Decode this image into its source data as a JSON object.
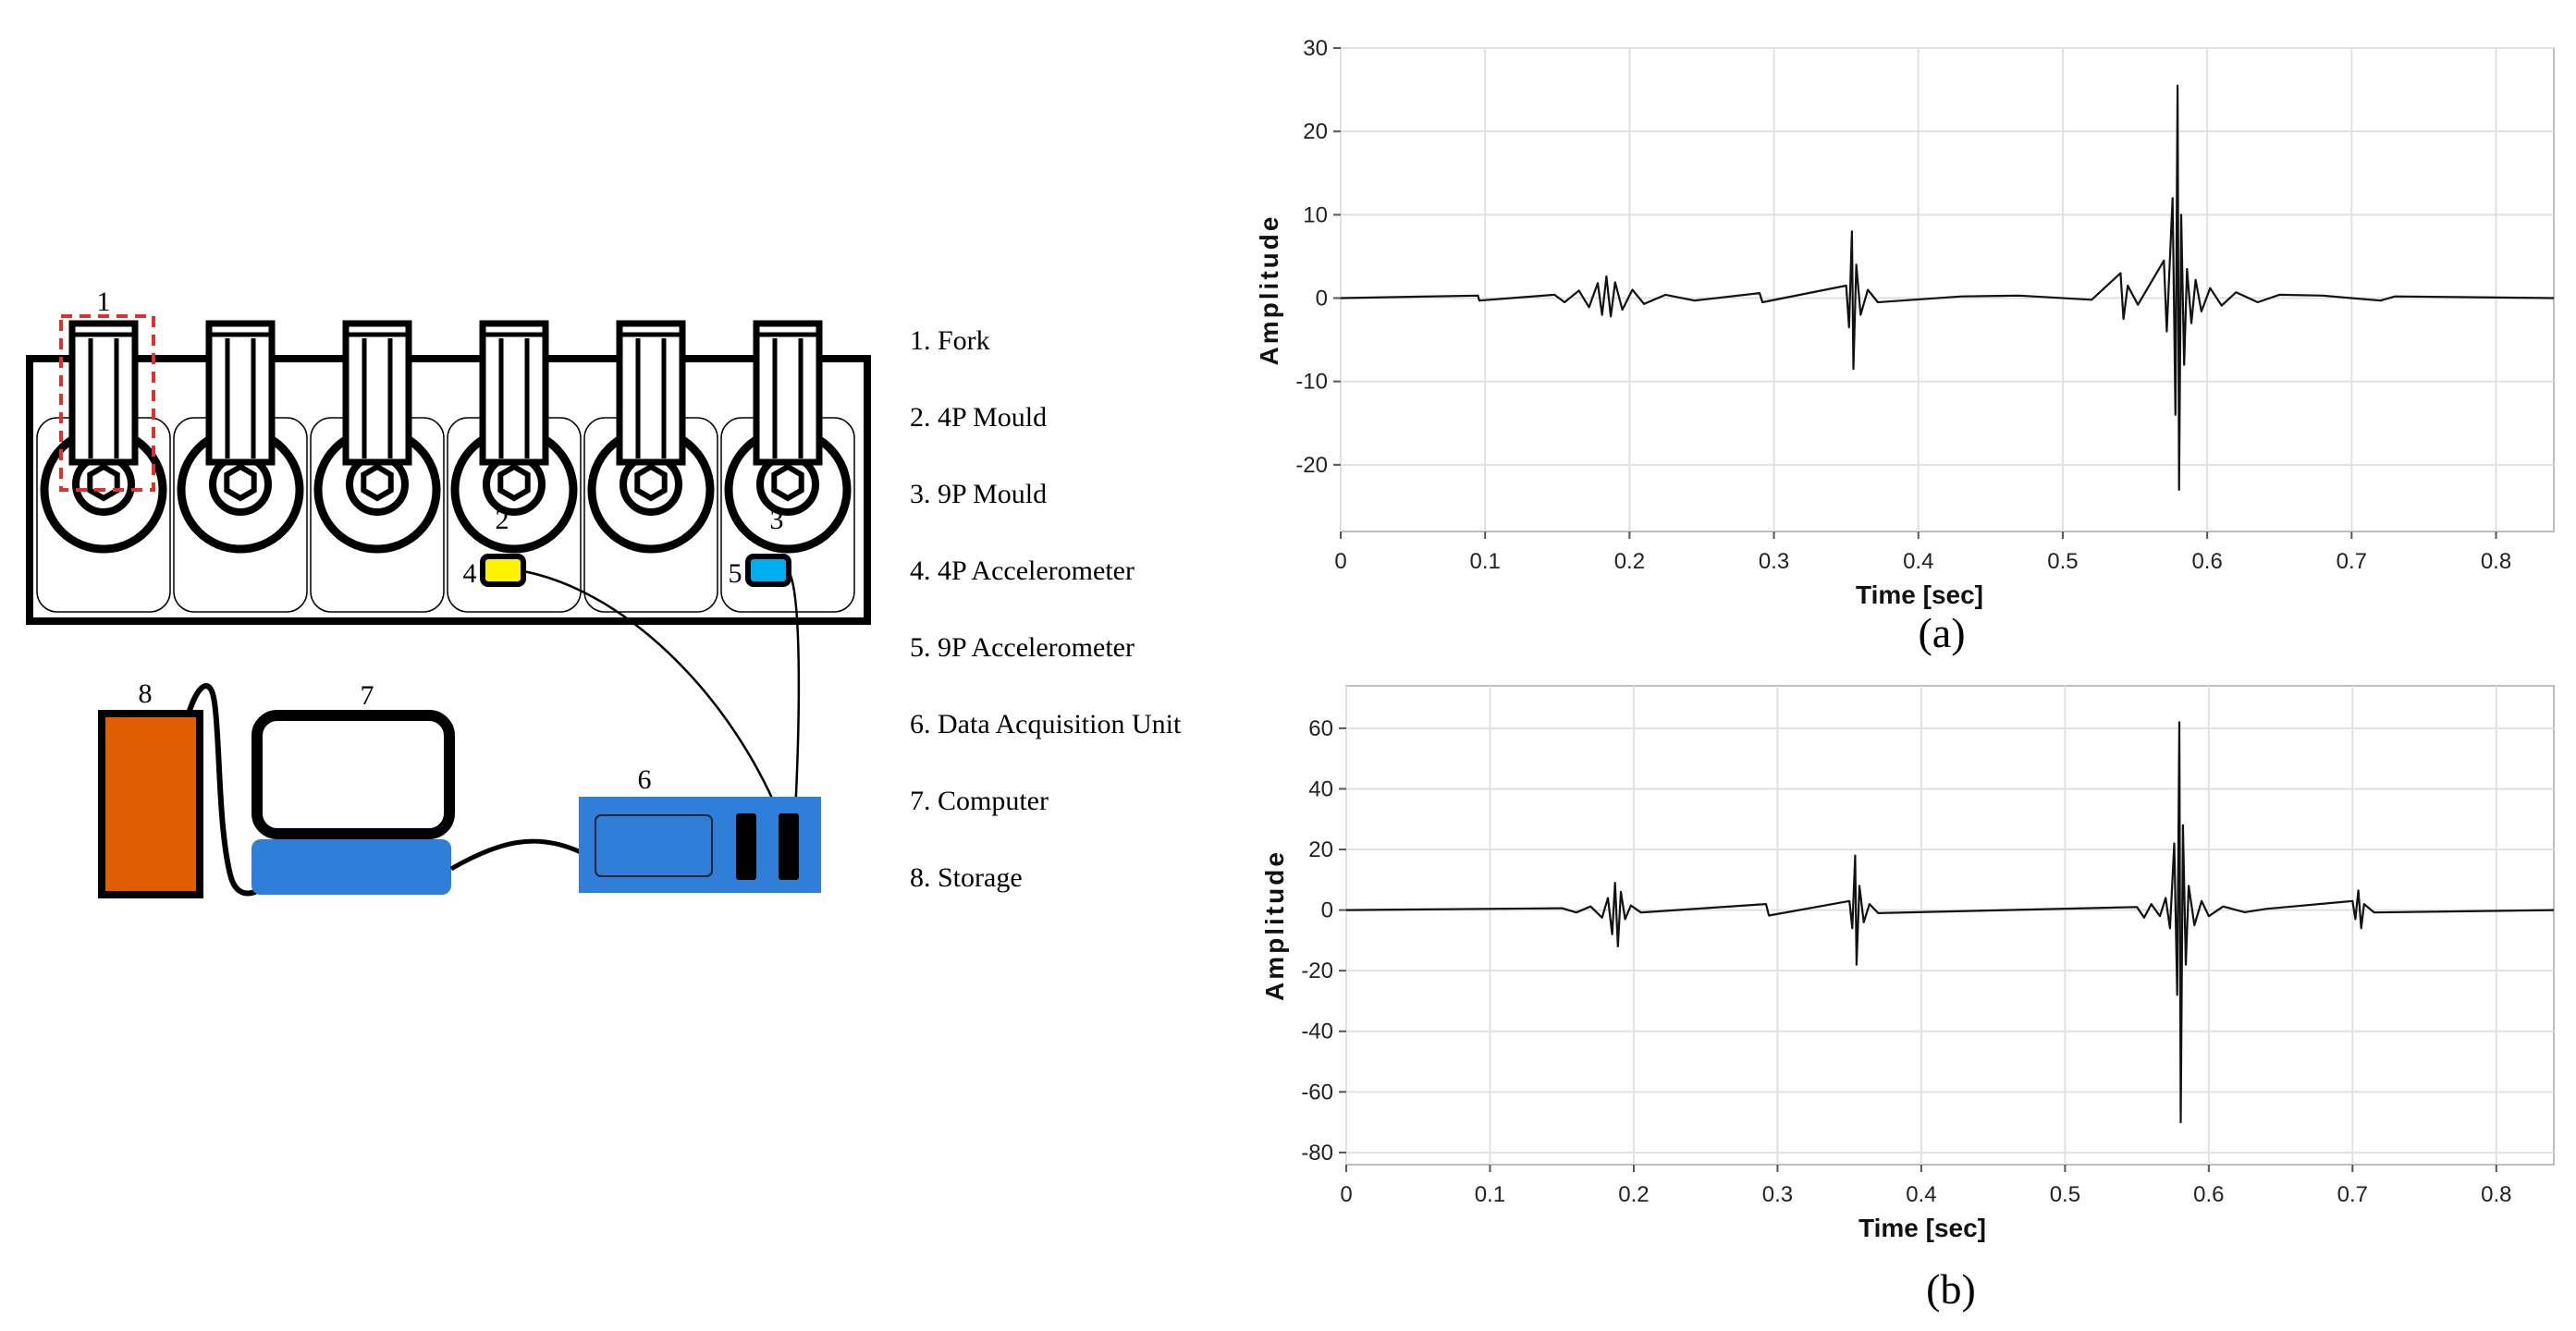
{
  "diagram": {
    "part_numbers": [
      "1",
      "2",
      "3",
      "4",
      "5",
      "6",
      "7",
      "8"
    ],
    "legend": [
      "1. Fork",
      "2. 4P Mould",
      "3. 9P Mould",
      "4. 4P Accelerometer",
      "5. 9P Accelerometer",
      "6. Data Acquisition Unit",
      "7. Computer",
      "8. Storage"
    ],
    "colors": {
      "storage": "#e05e00",
      "computer_base": "#2f7fd8",
      "daq": "#2f7fd8",
      "accelerometer_4p": "#fff200",
      "accelerometer_9p": "#00aeef",
      "fork_highlight": "#e0302a",
      "line": "#000000"
    }
  },
  "chart_data": [
    {
      "type": "line",
      "caption": "(a)",
      "xlabel": "Time [sec]",
      "ylabel": "Amplitude",
      "xlim": [
        0,
        0.84
      ],
      "ylim": [
        -28,
        30
      ],
      "xticks": [
        0,
        0.1,
        0.2,
        0.3,
        0.4,
        0.5,
        0.6,
        0.7,
        0.8
      ],
      "yticks": [
        30,
        20,
        10,
        0,
        -10,
        -20
      ],
      "grid": true,
      "series": [
        {
          "points": [
            [
              0.0,
              0
            ],
            [
              0.095,
              0.3
            ],
            [
              0.096,
              -0.3
            ],
            [
              0.148,
              0.4
            ],
            [
              0.155,
              -0.5
            ],
            [
              0.165,
              0.9
            ],
            [
              0.172,
              -1.1
            ],
            [
              0.178,
              1.8
            ],
            [
              0.181,
              -2.0
            ],
            [
              0.184,
              2.6
            ],
            [
              0.187,
              -2.2
            ],
            [
              0.19,
              1.9
            ],
            [
              0.195,
              -1.4
            ],
            [
              0.202,
              1.0
            ],
            [
              0.21,
              -0.7
            ],
            [
              0.225,
              0.4
            ],
            [
              0.245,
              -0.3
            ],
            [
              0.29,
              0.6
            ],
            [
              0.292,
              -0.5
            ],
            [
              0.35,
              1.5
            ],
            [
              0.352,
              -3.5
            ],
            [
              0.354,
              8.0
            ],
            [
              0.355,
              -8.5
            ],
            [
              0.357,
              4.0
            ],
            [
              0.36,
              -2.0
            ],
            [
              0.365,
              1.0
            ],
            [
              0.372,
              -0.5
            ],
            [
              0.43,
              0.2
            ],
            [
              0.47,
              0.3
            ],
            [
              0.52,
              -0.2
            ],
            [
              0.54,
              3.0
            ],
            [
              0.542,
              -2.5
            ],
            [
              0.545,
              1.5
            ],
            [
              0.552,
              -0.8
            ],
            [
              0.57,
              4.5
            ],
            [
              0.572,
              -4.0
            ],
            [
              0.576,
              12.0
            ],
            [
              0.578,
              -14.0
            ],
            [
              0.5795,
              25.5
            ],
            [
              0.5805,
              -23.0
            ],
            [
              0.582,
              10.0
            ],
            [
              0.584,
              -8.0
            ],
            [
              0.586,
              3.5
            ],
            [
              0.589,
              -3.0
            ],
            [
              0.592,
              2.2
            ],
            [
              0.596,
              -1.6
            ],
            [
              0.602,
              1.2
            ],
            [
              0.61,
              -0.9
            ],
            [
              0.62,
              0.7
            ],
            [
              0.635,
              -0.5
            ],
            [
              0.65,
              0.4
            ],
            [
              0.68,
              0.3
            ],
            [
              0.72,
              -0.3
            ],
            [
              0.73,
              0.2
            ],
            [
              0.84,
              0
            ]
          ]
        }
      ]
    },
    {
      "type": "line",
      "caption": "(b)",
      "xlabel": "Time [sec]",
      "ylabel": "Amplitude",
      "xlim": [
        0,
        0.84
      ],
      "ylim": [
        -84,
        74
      ],
      "xticks": [
        0,
        0.1,
        0.2,
        0.3,
        0.4,
        0.5,
        0.6,
        0.7,
        0.8
      ],
      "yticks": [
        60,
        40,
        20,
        0,
        -20,
        -40,
        -60,
        -80
      ],
      "grid": true,
      "series": [
        {
          "points": [
            [
              0.0,
              0
            ],
            [
              0.15,
              0.6
            ],
            [
              0.16,
              -0.8
            ],
            [
              0.17,
              1.2
            ],
            [
              0.178,
              -2.5
            ],
            [
              0.182,
              4.0
            ],
            [
              0.185,
              -8.0
            ],
            [
              0.187,
              9.0
            ],
            [
              0.189,
              -12.0
            ],
            [
              0.191,
              6.0
            ],
            [
              0.194,
              -3.0
            ],
            [
              0.198,
              1.5
            ],
            [
              0.205,
              -0.8
            ],
            [
              0.292,
              2.0
            ],
            [
              0.294,
              -1.8
            ],
            [
              0.35,
              3.0
            ],
            [
              0.352,
              -6.0
            ],
            [
              0.354,
              18.0
            ],
            [
              0.355,
              -18.0
            ],
            [
              0.357,
              8.0
            ],
            [
              0.36,
              -4.0
            ],
            [
              0.364,
              2.0
            ],
            [
              0.37,
              -1.0
            ],
            [
              0.55,
              1.0
            ],
            [
              0.555,
              -2.5
            ],
            [
              0.56,
              2.0
            ],
            [
              0.566,
              -2.0
            ],
            [
              0.57,
              4.0
            ],
            [
              0.573,
              -6.0
            ],
            [
              0.576,
              22.0
            ],
            [
              0.578,
              -28.0
            ],
            [
              0.5795,
              62.0
            ],
            [
              0.5805,
              -70.0
            ],
            [
              0.582,
              28.0
            ],
            [
              0.584,
              -18.0
            ],
            [
              0.586,
              8.0
            ],
            [
              0.59,
              -5.0
            ],
            [
              0.595,
              3.0
            ],
            [
              0.6,
              -2.0
            ],
            [
              0.61,
              1.2
            ],
            [
              0.625,
              -0.7
            ],
            [
              0.64,
              0.4
            ],
            [
              0.7,
              3.0
            ],
            [
              0.702,
              -3.0
            ],
            [
              0.704,
              6.5
            ],
            [
              0.706,
              -6.0
            ],
            [
              0.708,
              2.0
            ],
            [
              0.715,
              -0.8
            ],
            [
              0.84,
              0
            ]
          ]
        }
      ]
    }
  ]
}
